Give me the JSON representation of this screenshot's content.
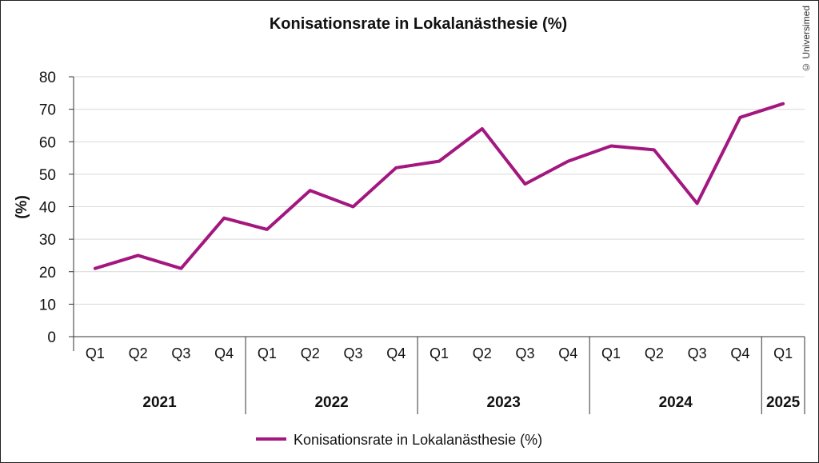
{
  "watermark": "© Universimed",
  "chart_data": {
    "type": "line",
    "title": "Konisationsrate in Lokalanästhesie (%)",
    "ylabel": "(%)",
    "xlabel": "",
    "ylim": [
      0,
      80
    ],
    "yticks": [
      0,
      10,
      20,
      30,
      40,
      50,
      60,
      70,
      80
    ],
    "grid": true,
    "legend_position": "bottom",
    "categories": [
      "Q1",
      "Q2",
      "Q3",
      "Q4",
      "Q1",
      "Q2",
      "Q3",
      "Q4",
      "Q1",
      "Q2",
      "Q3",
      "Q4",
      "Q1",
      "Q2",
      "Q3",
      "Q4",
      "Q1"
    ],
    "groups": [
      {
        "label": "2021",
        "count": 4
      },
      {
        "label": "2022",
        "count": 4
      },
      {
        "label": "2023",
        "count": 4
      },
      {
        "label": "2024",
        "count": 4
      },
      {
        "label": "2025",
        "count": 1
      }
    ],
    "series": [
      {
        "name": "Konisationsrate in Lokalanästhesie (%)",
        "color": "#a3177f",
        "values": [
          21,
          25,
          21,
          36.5,
          33,
          45,
          40,
          52,
          54,
          64,
          47,
          54,
          58.7,
          57.5,
          41,
          67.5,
          71.7
        ]
      }
    ]
  }
}
